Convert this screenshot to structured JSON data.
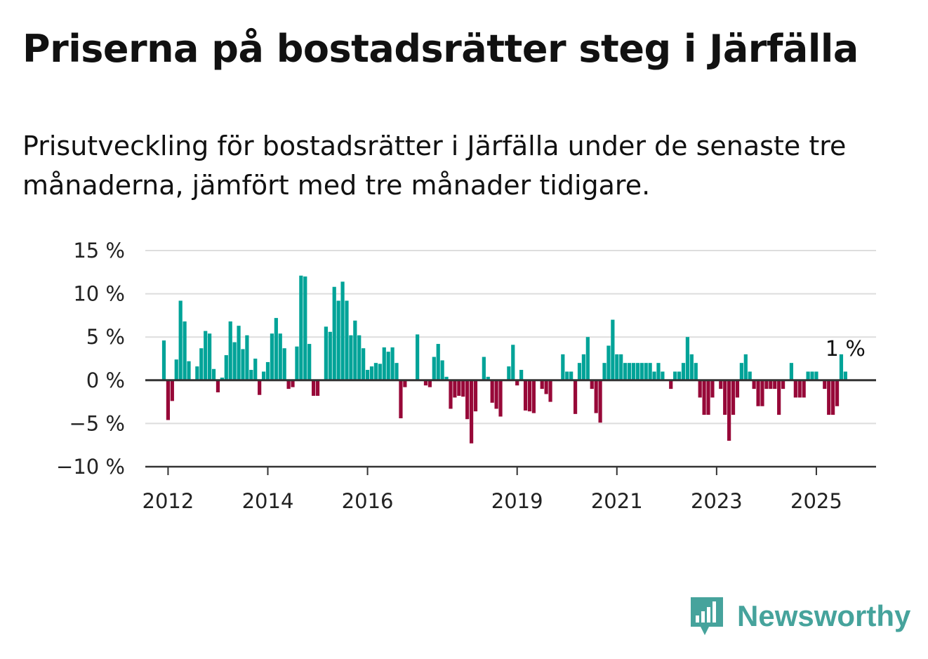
{
  "title": "Priserna på bostadsrätter steg i Järfälla",
  "subtitle": "Prisutveckling för bostadsrätter i Järfälla under de senaste tre månaderna, jämfört med tre månader tidigare.",
  "brand": "Newsworthy",
  "colors": {
    "positive": "#00a398",
    "negative": "#970838",
    "grid": "#dddddd",
    "axis": "#333333",
    "brand": "#46a39c"
  },
  "chart_data": {
    "type": "bar",
    "ylim": [
      -10,
      15
    ],
    "yticks": [
      15,
      10,
      5,
      0,
      -5,
      -10
    ],
    "ytick_labels": [
      "15 %",
      "10 %",
      "5 %",
      "0 %",
      "−5 %",
      "−10 %"
    ],
    "xticks": [
      "2012",
      "2014",
      "2016",
      "2019",
      "2021",
      "2023",
      "2025"
    ],
    "annotation": "1 %",
    "start_month": "2011-12",
    "values": [
      4.6,
      -4.6,
      -2.4,
      2.4,
      9.2,
      6.8,
      2.2,
      0,
      1.6,
      3.7,
      5.7,
      5.4,
      1.3,
      -1.4,
      0.3,
      2.9,
      6.8,
      4.4,
      6.3,
      3.6,
      5.2,
      1.2,
      2.5,
      -1.7,
      1,
      2.1,
      5.4,
      7.2,
      5.4,
      3.7,
      -1,
      -0.8,
      3.9,
      12.1,
      12,
      4.2,
      -1.8,
      -1.8,
      0,
      6.2,
      5.6,
      10.8,
      9.2,
      11.4,
      9.2,
      5.2,
      6.9,
      5.2,
      3.7,
      1.2,
      1.6,
      2,
      1.9,
      3.8,
      3.3,
      3.8,
      2,
      -4.4,
      -0.8,
      0,
      0,
      5.3,
      0,
      -0.6,
      -0.8,
      2.7,
      4.2,
      2.3,
      0.4,
      -3.3,
      -2,
      -1.8,
      -1.9,
      -4.5,
      -7.3,
      -3.6,
      0,
      2.7,
      0.4,
      -2.6,
      -3.3,
      -4.2,
      0,
      1.6,
      4.1,
      -0.6,
      1.2,
      -3.5,
      -3.6,
      -3.8,
      0,
      -1,
      -1.6,
      -2.5,
      0,
      0,
      3,
      1,
      1,
      -3.9,
      2,
      3,
      5,
      -1,
      -3.8,
      -4.9,
      2,
      4,
      7,
      3,
      3,
      2,
      2,
      2,
      2,
      2,
      2,
      2,
      1,
      2,
      1,
      0,
      -1,
      1,
      1,
      2,
      5,
      3,
      2,
      -2,
      -4,
      -4,
      -2,
      0,
      -1,
      -4,
      -7,
      -4,
      -2,
      2,
      3,
      1,
      -1,
      -3,
      -3,
      -1,
      -1,
      -1,
      -4,
      -1,
      0,
      2,
      -2,
      -2,
      -2,
      1,
      1,
      1,
      0,
      -1,
      -4,
      -4,
      -3,
      3,
      1
    ]
  }
}
